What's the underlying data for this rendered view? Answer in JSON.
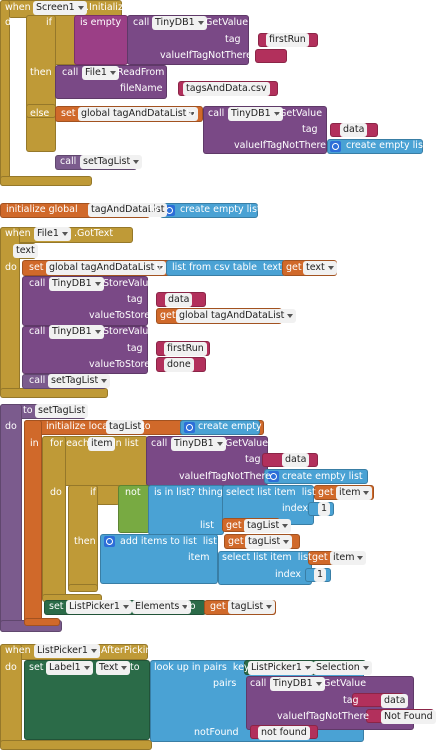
{
  "screen_initialize": {
    "lines": [
      [
        "when",
        "Screen1",
        ".Initialize"
      ],
      [
        "do",
        "if",
        "is empty",
        "call",
        "TinyDB1",
        ".GetValue"
      ],
      [
        "tag",
        "firstRun"
      ],
      [
        "valueIfTagNotThere"
      ],
      [
        "then",
        "call",
        "File1",
        ".ReadFrom"
      ],
      [
        "fileName",
        "tagsAndData.csv"
      ],
      [
        "else",
        "set",
        "global tagAndDataList",
        "to",
        "call",
        "TinyDB1",
        ".GetValue"
      ],
      [
        "tag",
        "data"
      ],
      [
        "valueIfTagNotThere",
        "create empty list"
      ],
      [
        "call",
        "setTagList"
      ]
    ]
  },
  "global_variable": {
    "lines": [
      [
        "initialize global",
        "tagAndDataList",
        "to",
        "create empty list"
      ]
    ]
  },
  "file_got_text": {
    "lines": [
      [
        "when",
        "File1",
        ".GotText"
      ],
      [
        "text"
      ],
      [
        "do",
        "set",
        "global tagAndDataList",
        "to",
        "list from csv table  text",
        "get",
        "text"
      ],
      [
        "call",
        "TinyDB1",
        ".StoreValue"
      ],
      [
        "tag",
        "data"
      ],
      [
        "valueToStore",
        "get",
        "global tagAndDataList"
      ],
      [
        "call",
        "TinyDB1",
        ".StoreValue"
      ],
      [
        "tag",
        "firstRun"
      ],
      [
        "valueToStore",
        "done"
      ],
      [
        "call",
        "setTagList"
      ]
    ]
  },
  "set_tag_list_procedure": {
    "lines": [
      [
        "to",
        "setTagList"
      ],
      [
        "do",
        "initialize local",
        "tagList",
        "to",
        "create empty list"
      ],
      [
        "in",
        "for each",
        "item",
        "in list",
        "call",
        "TinyDB1",
        ".GetValue"
      ],
      [
        "tag",
        "data"
      ],
      [
        "valueIfTagNotThere",
        "create empty list"
      ],
      [
        "do",
        "if",
        "not",
        "is in list? thing",
        "select list item  list",
        "get",
        "item"
      ],
      [
        "index",
        "1"
      ],
      [
        "list",
        "get",
        "tagList"
      ],
      [
        "then",
        "add items to list  list",
        "get",
        "tagList"
      ],
      [
        "item",
        "select list item  list",
        "get",
        "item"
      ],
      [
        "index",
        "1"
      ],
      [
        "set",
        "ListPicker1",
        ".",
        "Elements",
        "to",
        "get",
        "tagList"
      ]
    ]
  },
  "list_picker_after_picking": {
    "lines": [
      [
        "when",
        "ListPicker1",
        ".AfterPicking"
      ],
      [
        "do",
        "set",
        "Label1",
        ".",
        "Text",
        "to",
        "look up in pairs  key",
        "ListPicker1",
        ".",
        "Selection"
      ],
      [
        "pairs",
        "call",
        "TinyDB1",
        ".GetValue"
      ],
      [
        "tag",
        "data"
      ],
      [
        "valueIfTagNotThere",
        "Not Found"
      ],
      [
        "notFound",
        "not found"
      ]
    ]
  }
}
